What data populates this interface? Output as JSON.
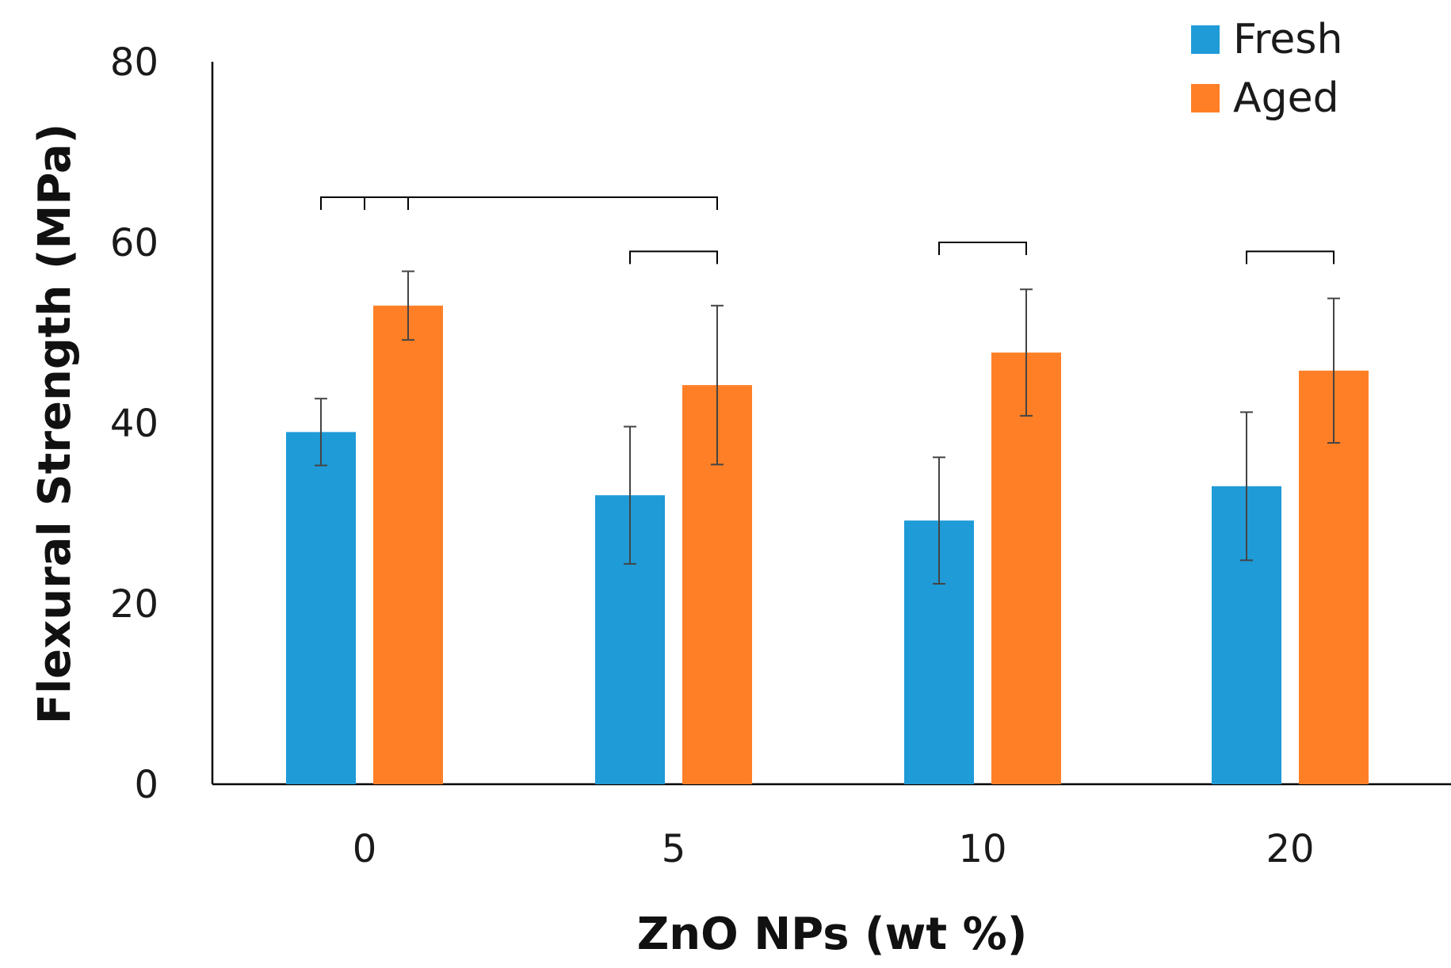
{
  "chart_data": {
    "type": "bar",
    "title": "",
    "xlabel": "ZnO NPs (wt %)",
    "ylabel": "Flexural Strength (MPa)",
    "ylim": [
      0,
      80
    ],
    "yticks": [
      "0",
      "20",
      "40",
      "60",
      "80"
    ],
    "categories": [
      "0",
      "5",
      "10",
      "20"
    ],
    "series": [
      {
        "name": "Fresh",
        "color": "#1f9bd7",
        "values": [
          39,
          32,
          29.2,
          33
        ],
        "errors": [
          3.7,
          7.6,
          7,
          8.2
        ]
      },
      {
        "name": "Aged",
        "color": "#ff7f27",
        "values": [
          53,
          44.2,
          47.8,
          45.8
        ],
        "errors": [
          3.8,
          8.8,
          7,
          8
        ]
      }
    ],
    "legend_position": "top-right",
    "significance_brackets": [
      {
        "from": "0-Fresh",
        "to": "0-Aged",
        "level": 65
      },
      {
        "from": "0",
        "to": "5-Aged",
        "level": 65
      },
      {
        "from": "5-Fresh",
        "to": "5-Aged",
        "level": 59
      },
      {
        "from": "10-Fresh",
        "to": "10-Aged",
        "level": 60
      },
      {
        "from": "20-Fresh",
        "to": "20-Aged",
        "level": 59
      }
    ]
  }
}
